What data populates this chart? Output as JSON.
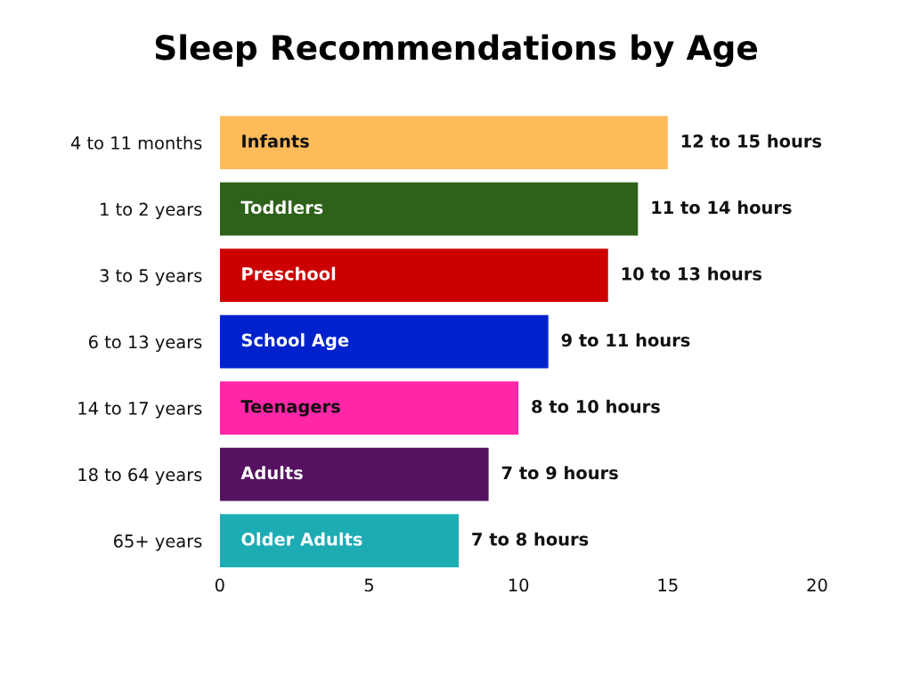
{
  "chart_data": {
    "type": "bar",
    "orientation": "horizontal",
    "title": "Sleep Recommendations by Age",
    "categories": [
      "4 to 11 months",
      "1 to 2 years",
      "3 to 5 years",
      "6 to 13 years",
      "14 to 17 years",
      "18 to 64 years",
      "65+ years"
    ],
    "values": [
      15,
      14,
      13,
      11,
      10,
      9,
      8
    ],
    "colors": [
      "#fdbb5a",
      "#2e6119",
      "#cc0000",
      "#0022cc",
      "#ff26a8",
      "#551260",
      "#1eacb4"
    ],
    "value_labels": [
      "12 to 15 hours",
      "11 to 14 hours",
      "10 to 13 hours",
      "9 to 11 hours",
      "8 to 10 hours",
      "7 to 9 hours",
      "7 to 8 hours"
    ],
    "annotations": [
      {
        "text": "Infants",
        "y": "4 to 11 months"
      },
      {
        "text": "Toddlers",
        "y": "1 to 2 years"
      },
      {
        "text": "Preschool",
        "y": "3 to 5 years"
      },
      {
        "text": "School Age",
        "y": "6 to 13 years"
      },
      {
        "text": "Teenagers",
        "y": "14 to 17 years"
      },
      {
        "text": "Adults",
        "y": "18 to 64 years"
      },
      {
        "text": "Older Adults",
        "y": "65+ years"
      }
    ],
    "xlim": [
      0,
      20
    ],
    "xticks": [
      0,
      5,
      10,
      15,
      20
    ],
    "grid": false,
    "legend": false
  }
}
